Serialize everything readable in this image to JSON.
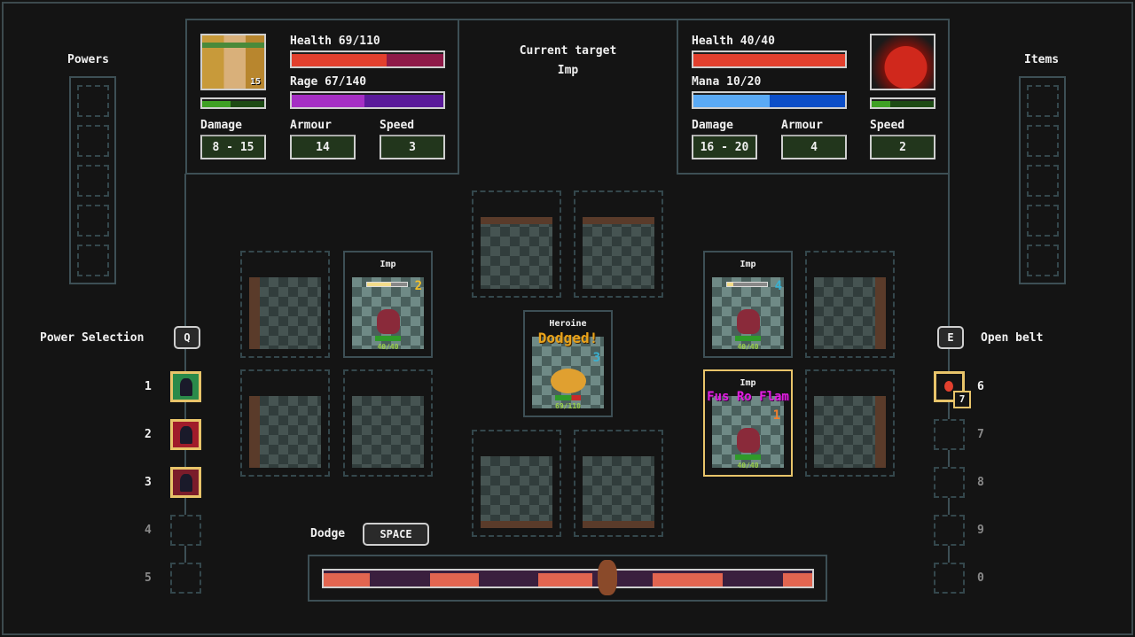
{
  "powers_panel": {
    "title": "Powers",
    "slots": 5
  },
  "items_panel": {
    "title": "Items",
    "slots": 5
  },
  "hero": {
    "name": "Heroine",
    "level": "15",
    "health_label": "Health 69/110",
    "health": 69,
    "health_max": 110,
    "resource_label": "Rage 67/140",
    "rage": 67,
    "rage_max": 140,
    "xp_fraction": 0.45,
    "stats": [
      {
        "label": "Damage",
        "value": "8 - 15"
      },
      {
        "label": "Armour",
        "value": "14"
      },
      {
        "label": "Speed",
        "value": "3"
      }
    ]
  },
  "target_info": {
    "title": "Current target",
    "name": "Imp"
  },
  "enemy": {
    "health_label": "Health 40/40",
    "health": 40,
    "health_max": 40,
    "resource_label": "Mana 10/20",
    "mana": 10,
    "mana_max": 20,
    "xp_fraction": 0.3,
    "stats": [
      {
        "label": "Damage",
        "value": "16 - 20"
      },
      {
        "label": "Armour",
        "value": "4"
      },
      {
        "label": "Speed",
        "value": "2"
      }
    ]
  },
  "battlefield": {
    "left_imp": {
      "name": "Imp",
      "turn": "2",
      "hp": "40/40",
      "atb": 0.6
    },
    "heroine": {
      "name": "Heroine",
      "popup": "Dodged!",
      "turn": "3",
      "hp": "69/110"
    },
    "right_imp_top": {
      "name": "Imp",
      "turn": "4",
      "hp": "40/40",
      "atb": 0.15
    },
    "right_imp_selected": {
      "name": "Imp",
      "popup": "Fus Ro Flam",
      "turn": "1",
      "hp": "40/40"
    }
  },
  "power_selection": {
    "label": "Power Selection",
    "key": "Q",
    "slots": [
      {
        "num": "1",
        "icon": "green-figure-power-icon",
        "filled": true
      },
      {
        "num": "2",
        "icon": "red-shield-power-icon",
        "filled": true
      },
      {
        "num": "3",
        "icon": "dark-armor-power-icon",
        "filled": true
      },
      {
        "num": "4",
        "filled": false
      },
      {
        "num": "5",
        "filled": false
      }
    ]
  },
  "belt": {
    "label": "Open belt",
    "key": "E",
    "slots": [
      {
        "num": "6",
        "icon": "potion-icon",
        "count": "7",
        "filled": true
      },
      {
        "num": "7",
        "filled": false
      },
      {
        "num": "8",
        "filled": false
      },
      {
        "num": "9",
        "filled": false
      },
      {
        "num": "0",
        "filled": false
      }
    ]
  },
  "dodge": {
    "label": "Dodge",
    "key": "SPACE",
    "marker_position": 0.58
  },
  "colors": {
    "health": "#e2402e",
    "rage": "#a52fc4",
    "mana": "#4aa3f5",
    "select": "#e8c46a",
    "popup_dodge": "#e8a21a",
    "popup_spell": "#e020e0"
  }
}
